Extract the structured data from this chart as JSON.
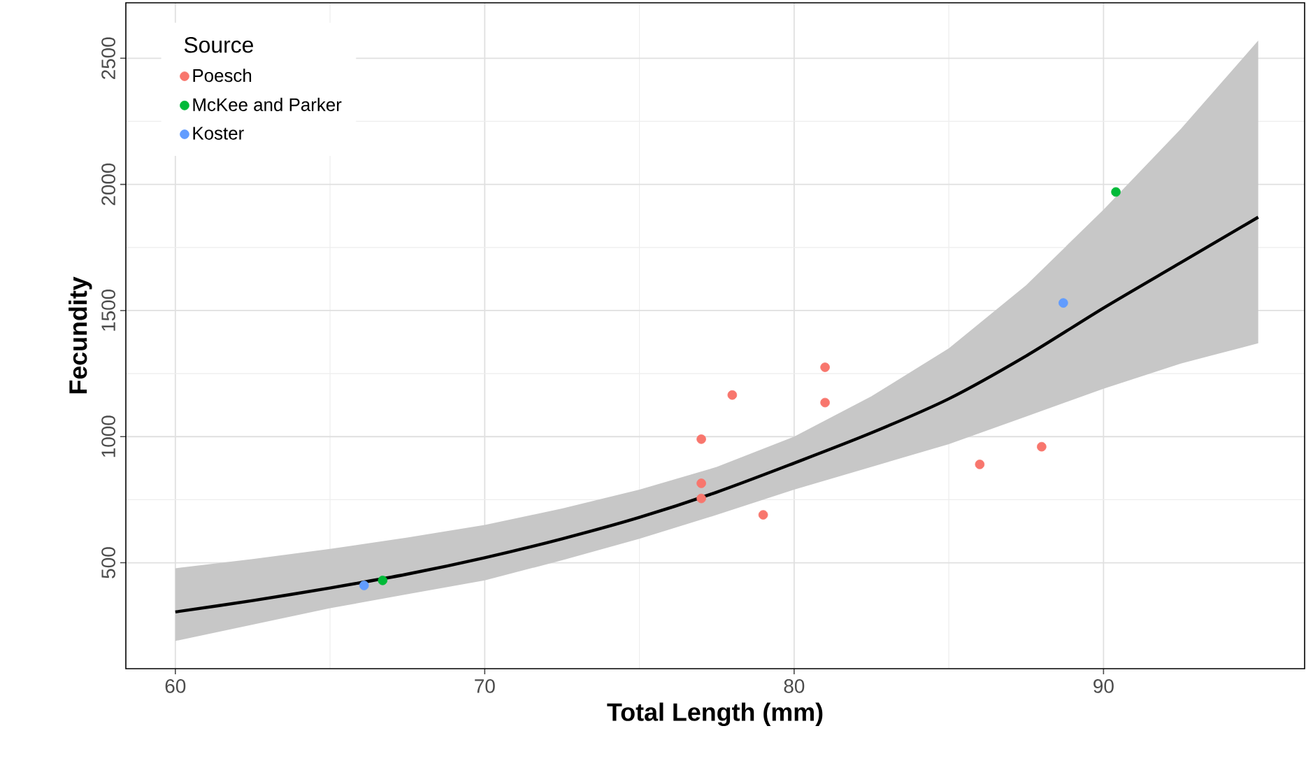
{
  "chart_data": {
    "type": "scatter",
    "xlabel": "Total Length (mm)",
    "ylabel": "Fecundity",
    "legend_title": "Source",
    "legend": "top left",
    "grid": true,
    "xlim": [
      58.4,
      96.5
    ],
    "ylim": [
      80,
      2720
    ],
    "xticks": [
      60,
      70,
      80,
      90
    ],
    "yticks": [
      500,
      1000,
      1500,
      2000,
      2500
    ],
    "series": [
      {
        "name": "Poesch",
        "marker": "circle",
        "color": "#f8766d",
        "x": [
          77,
          77,
          77,
          78,
          79,
          81,
          81,
          86,
          88
        ],
        "values": [
          990,
          815,
          755,
          1165,
          690,
          1275,
          1135,
          890,
          960
        ]
      },
      {
        "name": "McKee and Parker",
        "marker": "circle",
        "color": "#00ba38",
        "x": [
          66.7,
          90.4
        ],
        "values": [
          430,
          1970
        ]
      },
      {
        "name": "Koster",
        "marker": "circle",
        "color": "#619cff",
        "x": [
          66.1,
          88.7
        ],
        "values": [
          410,
          1530
        ]
      },
      {
        "type": "line",
        "marker": "none",
        "color": "#000000",
        "x": [
          60,
          62.5,
          65,
          67.5,
          70,
          72.5,
          75,
          77.5,
          80,
          82.5,
          85,
          87.5,
          90,
          92.5,
          95
        ],
        "values": [
          305,
          350,
          400,
          455,
          520,
          595,
          680,
          780,
          895,
          1015,
          1150,
          1320,
          1510,
          1690,
          1870
        ],
        "lower": [
          190,
          255,
          320,
          375,
          430,
          510,
          595,
          690,
          790,
          880,
          970,
          1080,
          1190,
          1290,
          1370
        ],
        "upper": [
          478,
          515,
          555,
          600,
          650,
          715,
          790,
          880,
          1000,
          1160,
          1350,
          1600,
          1900,
          2220,
          2570
        ]
      }
    ]
  }
}
